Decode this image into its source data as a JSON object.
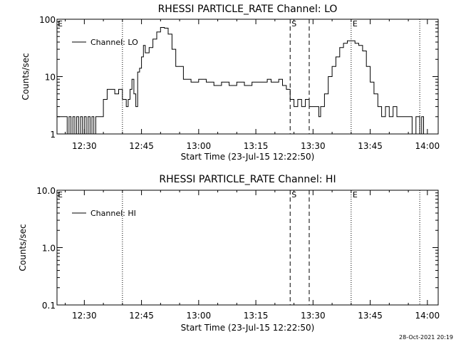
{
  "chart_data": [
    {
      "type": "line",
      "title": "RHESSI PARTICLE_RATE Channel: LO",
      "xlabel": "Start Time (23-Jul-15 12:22:50)",
      "ylabel": "Counts/sec",
      "yscale": "log",
      "ylim": [
        1,
        100
      ],
      "xlim": [
        "12:22:50",
        "14:02:50"
      ],
      "x_ticks": [
        "12:30",
        "12:45",
        "13:00",
        "13:15",
        "13:30",
        "13:45",
        "14:00"
      ],
      "y_ticks": [
        "1",
        "10",
        "100"
      ],
      "grid": false,
      "legend_position": "top-left",
      "series": [
        {
          "name": "Channel: LO",
          "x": [
            "12:22:50",
            "12:25:00",
            "12:25:30",
            "12:26:00",
            "12:26:30",
            "12:27:00",
            "12:27:30",
            "12:28:00",
            "12:28:30",
            "12:29:00",
            "12:29:30",
            "12:30:00",
            "12:30:30",
            "12:31:00",
            "12:31:30",
            "12:32:00",
            "12:32:30",
            "12:33:00",
            "12:34:00",
            "12:35:00",
            "12:36:00",
            "12:37:00",
            "12:38:00",
            "12:39:00",
            "12:40:00",
            "12:41:00",
            "12:41:30",
            "12:42:00",
            "12:42:30",
            "12:43:00",
            "12:43:30",
            "12:44:00",
            "12:44:30",
            "12:45:00",
            "12:45:30",
            "12:46:00",
            "12:47:00",
            "12:48:00",
            "12:49:00",
            "12:50:00",
            "12:51:00",
            "12:52:00",
            "12:53:00",
            "12:54:00",
            "12:56:00",
            "12:58:00",
            "13:00:00",
            "13:02:00",
            "13:04:00",
            "13:06:00",
            "13:08:00",
            "13:10:00",
            "13:12:00",
            "13:14:00",
            "13:16:00",
            "13:18:00",
            "13:19:00",
            "13:20:00",
            "13:21:00",
            "13:22:00",
            "13:23:00",
            "13:24:00",
            "13:25:00",
            "13:26:00",
            "13:27:00",
            "13:28:00",
            "13:29:00",
            "13:30:00",
            "13:31:00",
            "13:31:30",
            "13:32:00",
            "13:33:00",
            "13:34:00",
            "13:35:00",
            "13:36:00",
            "13:37:00",
            "13:38:00",
            "13:39:00",
            "13:40:00",
            "13:41:00",
            "13:42:00",
            "13:43:00",
            "13:44:00",
            "13:45:00",
            "13:46:00",
            "13:47:00",
            "13:48:00",
            "13:49:00",
            "13:50:00",
            "13:51:00",
            "13:52:00",
            "13:53:00",
            "13:54:00",
            "13:55:00",
            "13:56:00",
            "13:57:00",
            "13:58:00",
            "13:58:30",
            "13:59:00"
          ],
          "y": [
            2,
            2,
            1,
            2,
            1,
            2,
            1,
            2,
            1,
            2,
            1,
            2,
            1,
            2,
            1,
            2,
            1,
            2,
            2,
            4,
            6,
            6,
            5,
            6,
            4,
            3,
            4,
            6,
            9,
            5,
            3,
            12,
            14,
            22,
            35,
            26,
            32,
            45,
            60,
            72,
            70,
            55,
            30,
            15,
            9,
            8,
            9,
            8,
            7,
            8,
            7,
            8,
            7,
            8,
            8,
            9,
            8,
            8,
            9,
            7,
            6,
            4,
            3,
            4,
            3,
            4,
            3,
            3,
            3,
            2,
            3,
            5,
            10,
            15,
            22,
            32,
            38,
            42,
            42,
            38,
            35,
            28,
            15,
            8,
            5,
            3,
            2,
            3,
            2,
            3,
            2,
            2,
            2,
            2,
            1,
            2,
            1,
            2,
            1
          ]
        }
      ],
      "annotations": [
        "E",
        "S",
        "E"
      ]
    },
    {
      "type": "line",
      "title": "RHESSI PARTICLE_RATE Channel: HI",
      "xlabel": "Start Time (23-Jul-15 12:22:50)",
      "ylabel": "Counts/sec",
      "yscale": "log",
      "ylim": [
        0.1,
        10
      ],
      "xlim": [
        "12:22:50",
        "14:02:50"
      ],
      "x_ticks": [
        "12:30",
        "12:45",
        "13:00",
        "13:15",
        "13:30",
        "13:45",
        "14:00"
      ],
      "y_ticks": [
        "0.1",
        "1.0",
        "10.0"
      ],
      "grid": false,
      "legend_position": "top-left",
      "series": [
        {
          "name": "Channel: HI",
          "x": [],
          "y": []
        }
      ],
      "annotations": [
        "E",
        "S",
        "E"
      ]
    }
  ],
  "event_lines": [
    {
      "time": "12:40:00",
      "style": "dotted",
      "label": ""
    },
    {
      "time": "13:24:00",
      "style": "dashed",
      "label": "S"
    },
    {
      "time": "13:29:00",
      "style": "dashed",
      "label": ""
    },
    {
      "time": "13:40:00",
      "style": "dotted",
      "label": "E"
    },
    {
      "time": "13:58:00",
      "style": "dotted",
      "label": ""
    }
  ],
  "left_marker_label": "E",
  "timestamp": "28-Oct-2021 20:19"
}
